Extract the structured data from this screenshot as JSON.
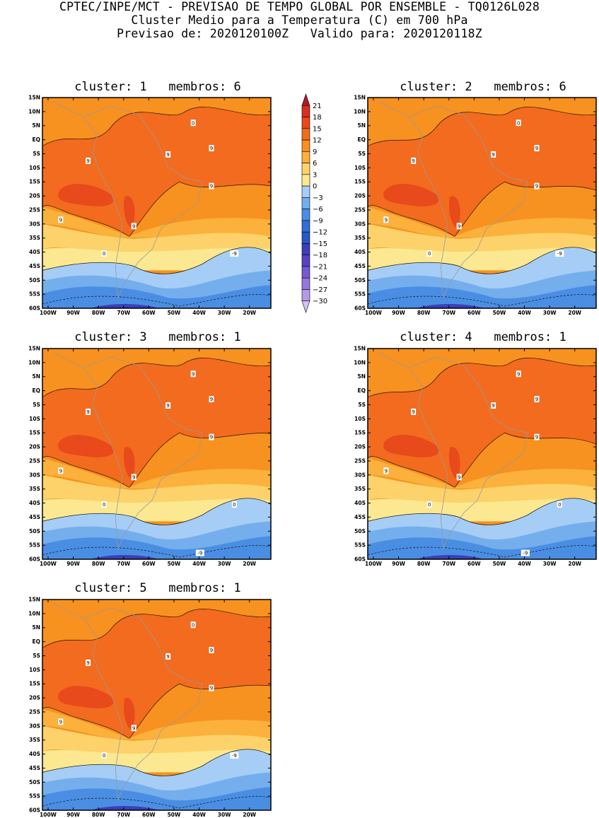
{
  "header": {
    "line1": "CPTEC/INPE/MCT - PREVISAO DE TEMPO GLOBAL POR ENSEMBLE - TQ0126L028",
    "line2": "Cluster Medio para a Temperatura (C) em 700 hPa",
    "line3": "Previsao de: 2020120100Z   Valido para: 2020120118Z"
  },
  "axes": {
    "lat_labels": [
      "15N",
      "10N",
      "5N",
      "EQ",
      "5S",
      "10S",
      "15S",
      "20S",
      "25S",
      "30S",
      "35S",
      "40S",
      "45S",
      "50S",
      "55S",
      "60S"
    ],
    "lon_labels": [
      "100W",
      "90W",
      "80W",
      "70W",
      "60W",
      "50W",
      "40W",
      "30W",
      "20W"
    ]
  },
  "colorbar": {
    "levels": [
      "21",
      "18",
      "15",
      "12",
      "9",
      "6",
      "3",
      "0",
      "-3",
      "-6",
      "-9",
      "-12",
      "-15",
      "-18",
      "-21",
      "-24",
      "-27",
      "-30"
    ],
    "colors": [
      "#b2182b",
      "#d7301f",
      "#e84a1b",
      "#f26b1e",
      "#f7911f",
      "#fbb13c",
      "#fdd26a",
      "#fbe890",
      "#a6cdf5",
      "#74aeed",
      "#4a8ee3",
      "#2f6fd6",
      "#2a56c6",
      "#3a3fb8",
      "#5b40c4",
      "#7658d0",
      "#9478dc",
      "#b49be6",
      "#d3c3ef"
    ],
    "colors_note": "colorbar segments from top (>21) to bottom (<-30)"
  },
  "panels": [
    {
      "title": "cluster: 1   membros: 6",
      "contour_labels": [
        "9",
        "9",
        "9",
        "9",
        "9",
        "9",
        "0",
        "0",
        "-9"
      ]
    },
    {
      "title": "cluster: 2   membros: 6",
      "contour_labels": [
        "9",
        "9",
        "9",
        "9",
        "9",
        "9",
        "0",
        "0",
        "-9"
      ]
    },
    {
      "title": "cluster: 3   membros: 1",
      "contour_labels": [
        "9",
        "9",
        "9",
        "9",
        "9",
        "9",
        "9",
        "0",
        "0",
        "-9"
      ]
    },
    {
      "title": "cluster: 4   membros: 1",
      "contour_labels": [
        "9",
        "9",
        "9",
        "9",
        "9",
        "9",
        "9",
        "0",
        "0",
        "-9"
      ]
    },
    {
      "title": "cluster: 5   membros: 1",
      "contour_labels": [
        "9",
        "9",
        "9",
        "9",
        "9",
        "9",
        "0",
        "0",
        "-9"
      ]
    }
  ]
}
